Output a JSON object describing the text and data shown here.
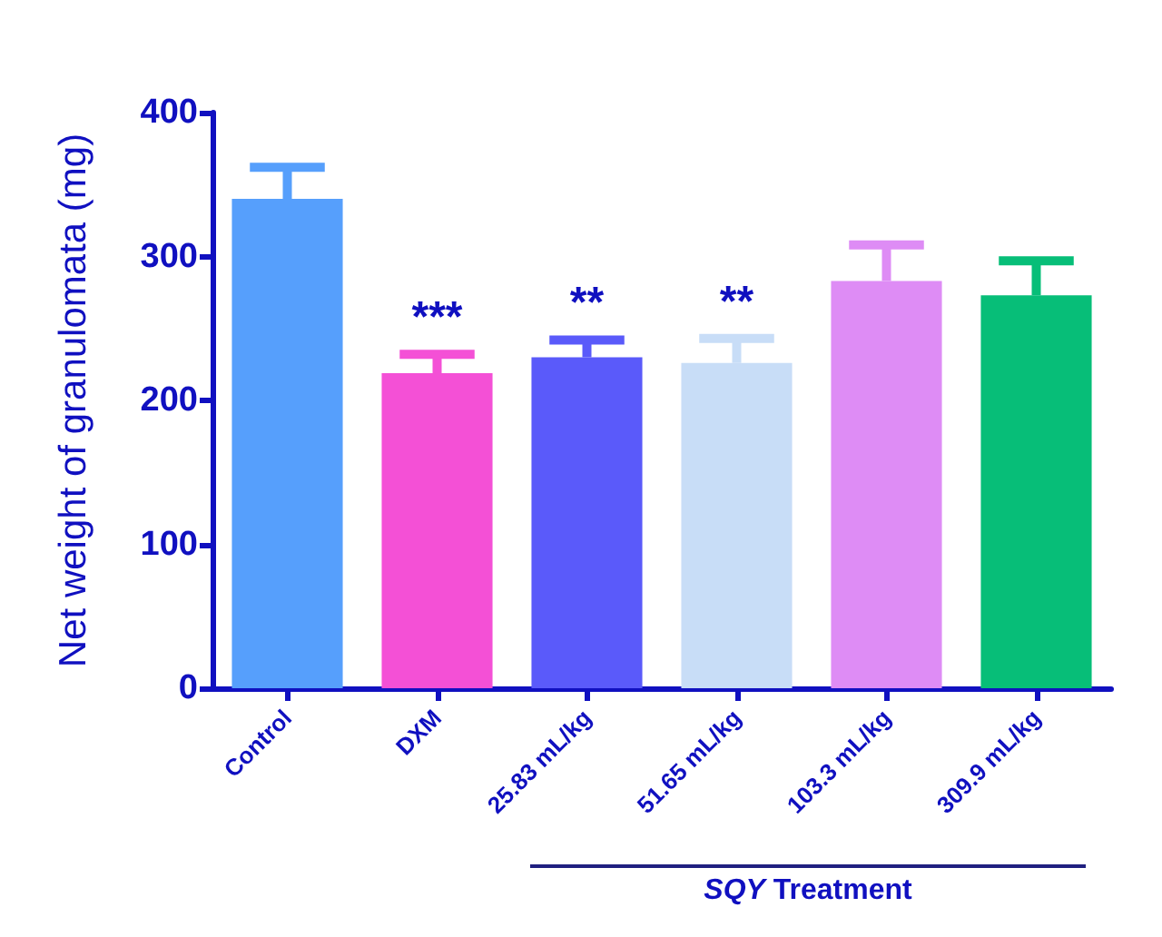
{
  "chart_data": {
    "type": "bar",
    "ylabel": "Net weight of granulomata (mg)",
    "categories": [
      "Control",
      "DXM",
      "25.83 mL/kg",
      "51.65 mL/kg",
      "103.3 mL/kg",
      "309.9 mL/kg"
    ],
    "values": [
      340,
      219,
      230,
      226,
      283,
      273
    ],
    "colors": [
      "#569ffc",
      "#f450d6",
      "#5a5afa",
      "#c8ddf7",
      "#de8cf5",
      "#07be78"
    ],
    "errors": [
      [
        340,
        362
      ],
      [
        219,
        232
      ],
      [
        230,
        242
      ],
      [
        226,
        243
      ],
      [
        283,
        308
      ],
      [
        273,
        297
      ]
    ],
    "ylim": [
      0,
      400
    ],
    "yticks": [
      0,
      100,
      200,
      300,
      400
    ],
    "grid": false,
    "annotations": [
      {
        "text": "***",
        "x": "DXM",
        "y": 232
      },
      {
        "text": "**",
        "x": "25.83 mL/kg",
        "y": 242
      },
      {
        "text": "**",
        "x": "51.65 mL/kg",
        "y": 243
      },
      "SQY Treatment"
    ]
  }
}
